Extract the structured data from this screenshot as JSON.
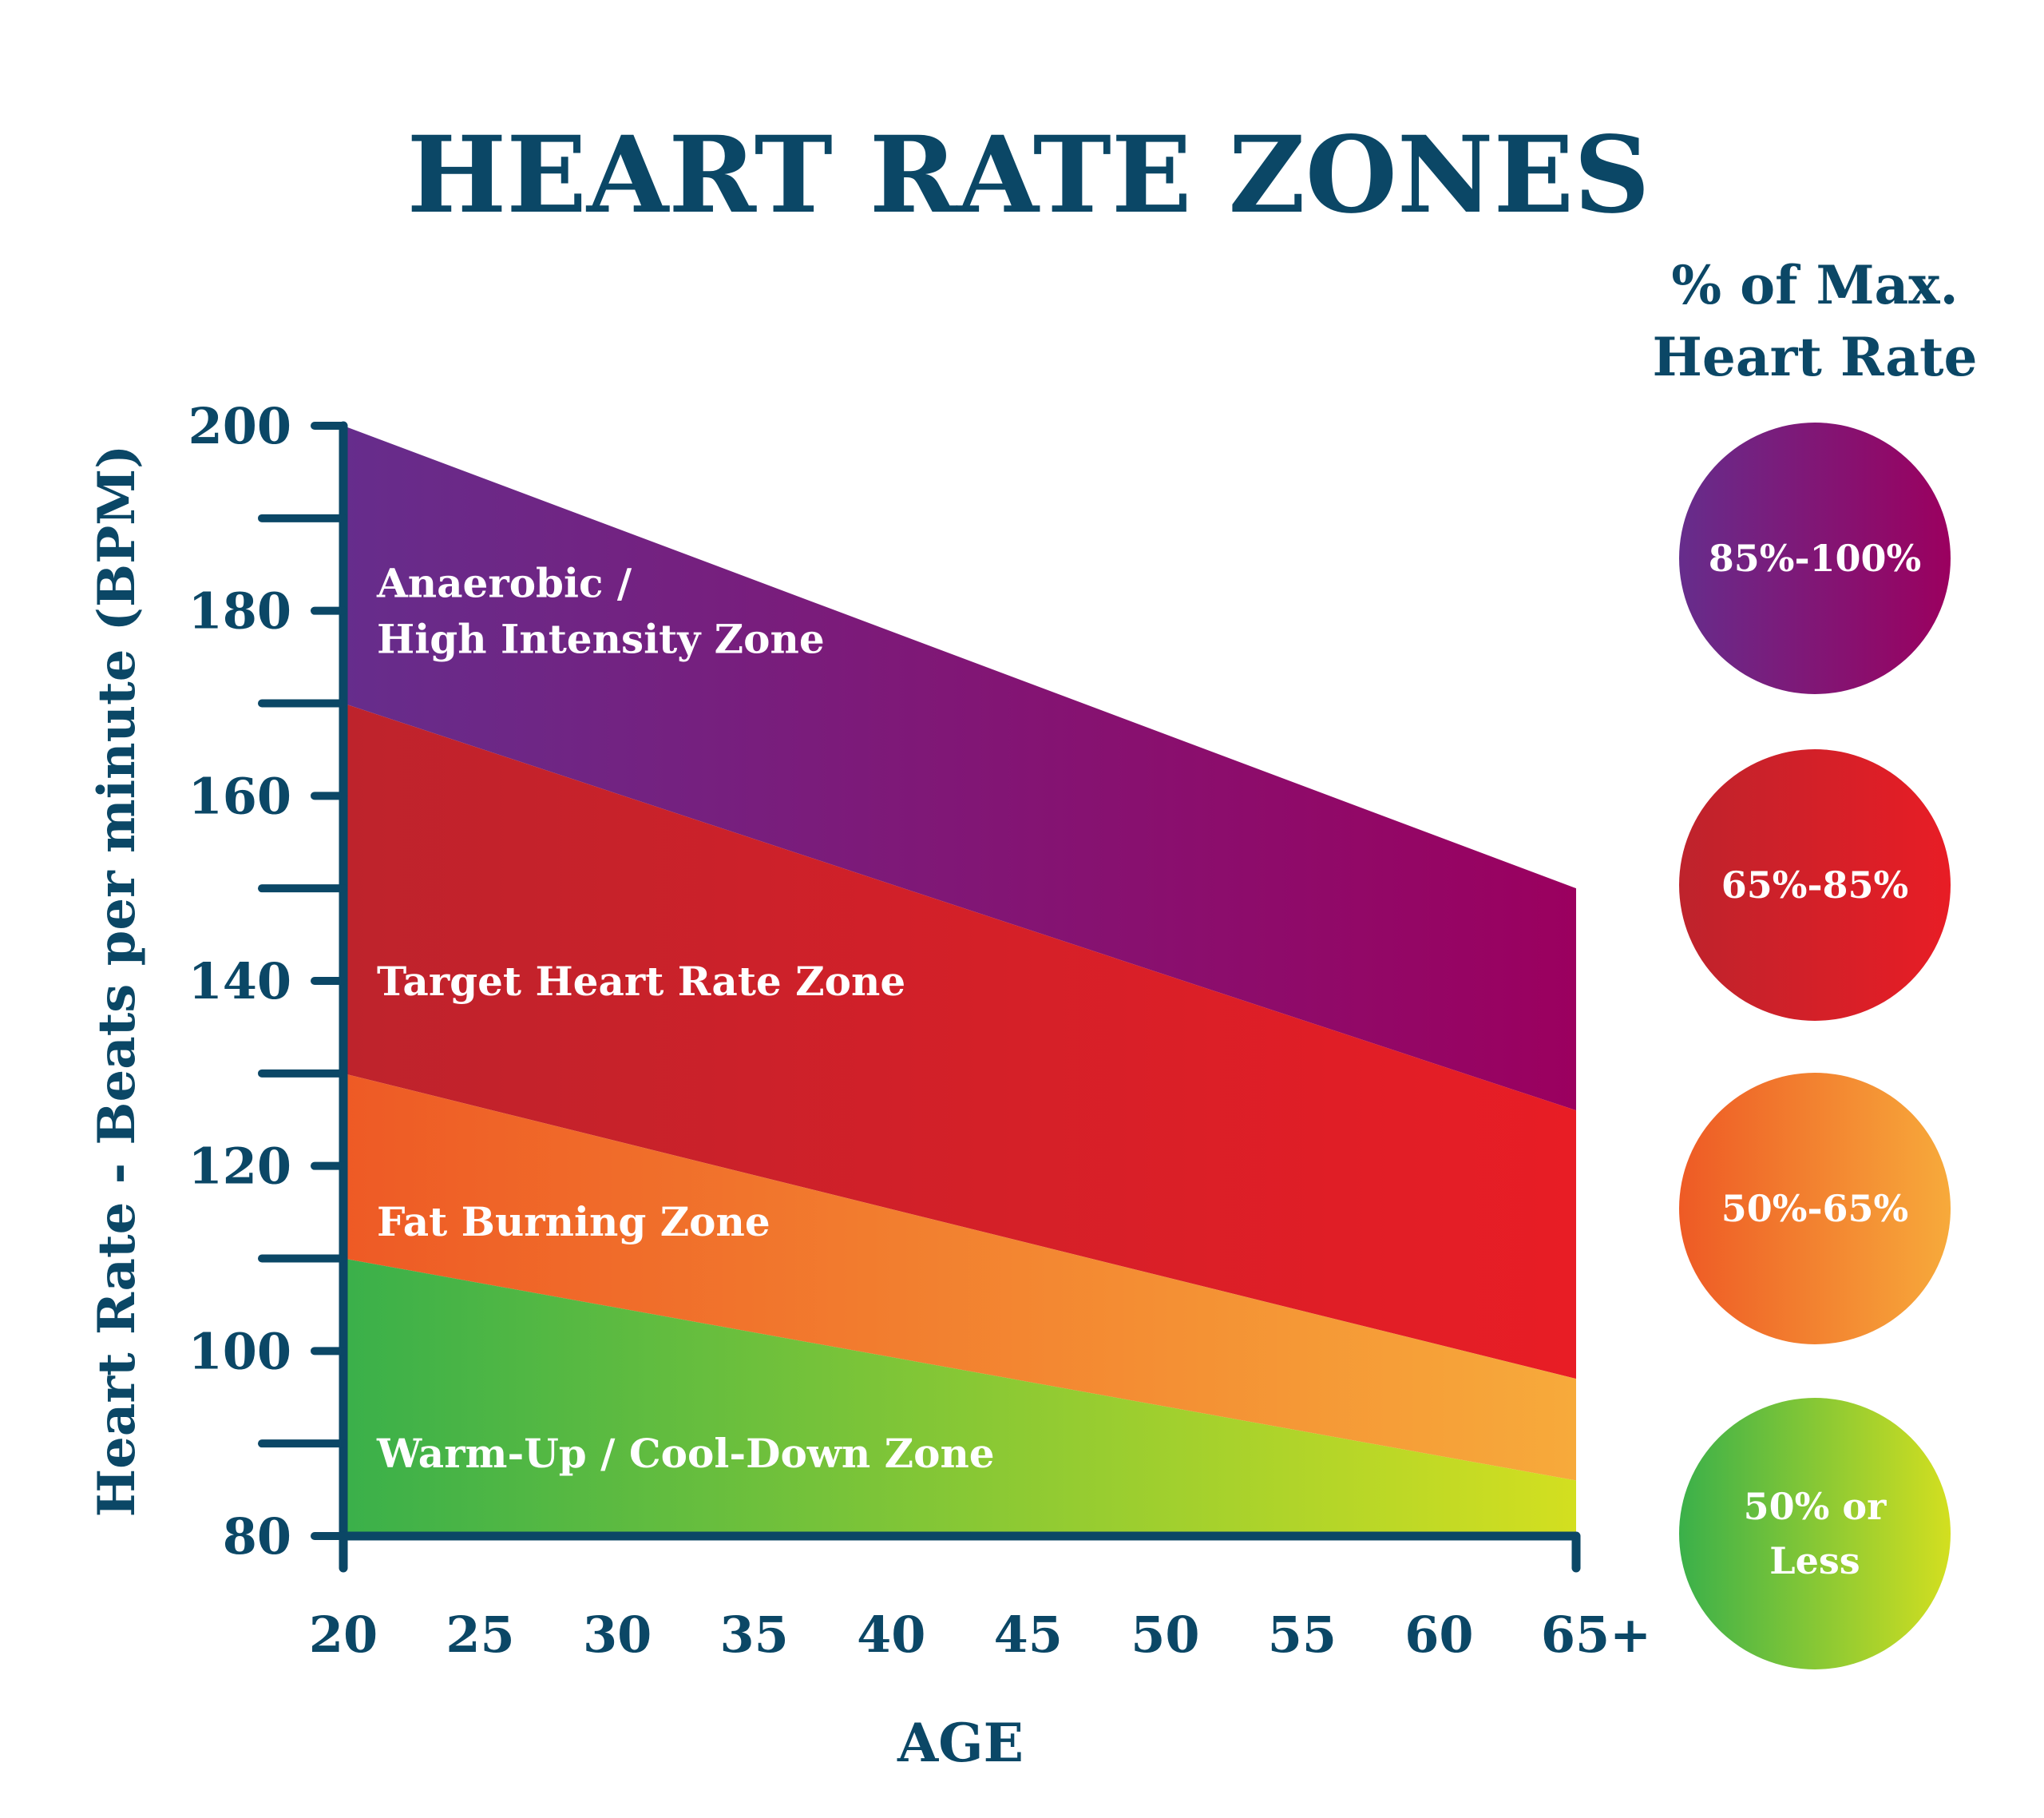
{
  "colors": {
    "ink": "#0b4766",
    "label": "#ffffff"
  },
  "chart_data": {
    "type": "area",
    "title": "HEART RATE ZONES",
    "xlabel": "AGE",
    "ylabel": "Heart Rate - Beats per minute (BPM)",
    "x": [
      20,
      65
    ],
    "x_tick_labels": [
      "20",
      "25",
      "30",
      "35",
      "40",
      "45",
      "50",
      "55",
      "60",
      "65+"
    ],
    "y_tick_labels": [
      "80",
      "100",
      "120",
      "140",
      "160",
      "180",
      "200"
    ],
    "ylim": [
      80,
      200
    ],
    "xlim": [
      20,
      65
    ],
    "grid": false,
    "zones": [
      {
        "name": "Anaerobic / High Intensity Zone",
        "lines": [
          "Anaerobic /",
          "High Intensity Zone"
        ],
        "upper": [
          200,
          150
        ],
        "lower": [
          170,
          126
        ],
        "colors": [
          "#662d8c",
          "#9b005f"
        ],
        "label_y": 180
      },
      {
        "name": "Target Heart Rate Zone",
        "lines": [
          "Target Heart Rate Zone"
        ],
        "upper": [
          170,
          126
        ],
        "lower": [
          130,
          97
        ],
        "colors": [
          "#be232c",
          "#e81d25"
        ],
        "label_y": 140
      },
      {
        "name": "Fat Burning Zone",
        "lines": [
          "Fat Burning Zone"
        ],
        "upper": [
          130,
          97
        ],
        "lower": [
          110,
          86
        ],
        "colors": [
          "#ee5a25",
          "#f7aa3b"
        ],
        "label_y": 114
      },
      {
        "name": "Warm-Up / Cool-Down Zone",
        "lines": [
          "Warm-Up / Cool-Down Zone"
        ],
        "upper": [
          110,
          86
        ],
        "lower": [
          80,
          80
        ],
        "colors": [
          "#3ab04a",
          "#d3df20"
        ],
        "label_y": 89
      }
    ]
  },
  "legend": {
    "title_lines": [
      "% of Max.",
      "Heart Rate"
    ],
    "items": [
      {
        "lines": [
          "85%-100%"
        ],
        "colors": [
          "#662d8c",
          "#9b005f"
        ]
      },
      {
        "lines": [
          "65%-85%"
        ],
        "colors": [
          "#be232c",
          "#e81d25"
        ]
      },
      {
        "lines": [
          "50%-65%"
        ],
        "colors": [
          "#ee5a25",
          "#f7aa3b"
        ]
      },
      {
        "lines": [
          "50% or",
          "Less"
        ],
        "colors": [
          "#3ab04a",
          "#d3df20"
        ]
      }
    ]
  }
}
